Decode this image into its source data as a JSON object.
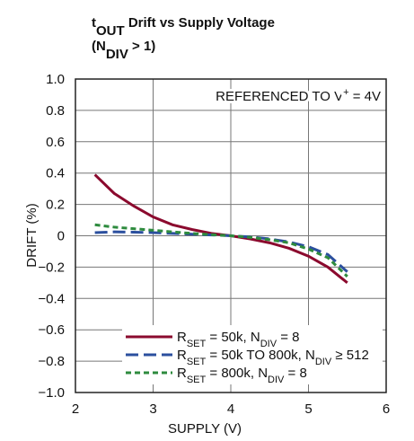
{
  "chart_data": {
    "type": "line",
    "title": [
      [
        "t",
        "OUT",
        " Drift vs Supply Voltage"
      ],
      [
        "(N",
        "DIV",
        " > 1)"
      ]
    ],
    "annotation": [
      "REFERENCED TO V",
      "+",
      " = 4V"
    ],
    "xlabel": "SUPPLY (V)",
    "ylabel": "DRIFT (%)",
    "x": [
      2.25,
      2.5,
      2.75,
      3,
      3.25,
      3.5,
      3.75,
      4,
      4.25,
      4.5,
      4.75,
      5,
      5.25,
      5.5
    ],
    "series": [
      {
        "name": [
          "R",
          "SET",
          " = 50k, N",
          "DIV",
          " = 8"
        ],
        "color": "#8b0a2e",
        "dash": "none",
        "values": [
          0.39,
          0.27,
          0.19,
          0.12,
          0.07,
          0.04,
          0.015,
          0,
          -0.02,
          -0.045,
          -0.08,
          -0.13,
          -0.2,
          -0.3
        ]
      },
      {
        "name": [
          "R",
          "SET",
          " = 50k TO 800k, N",
          "DIV",
          " ≥ 512"
        ],
        "color": "#2b4f9e",
        "dash": "14 6",
        "values": [
          0.02,
          0.025,
          0.023,
          0.02,
          0.015,
          0.01,
          0.005,
          0,
          -0.007,
          -0.02,
          -0.04,
          -0.07,
          -0.12,
          -0.23
        ]
      },
      {
        "name": [
          "R",
          "SET",
          " = 800k, N",
          "DIV",
          " = 8"
        ],
        "color": "#2e8b3e",
        "dash": "6 4",
        "values": [
          0.07,
          0.055,
          0.045,
          0.035,
          0.025,
          0.015,
          0.007,
          0,
          -0.01,
          -0.025,
          -0.045,
          -0.085,
          -0.14,
          -0.26
        ]
      }
    ],
    "xlim": [
      2,
      6
    ],
    "xticks": [
      2,
      3,
      4,
      5,
      6
    ],
    "ylim": [
      -1,
      1
    ],
    "yticks": [
      {
        "value": -1,
        "label": "−1.0"
      },
      {
        "value": -0.8,
        "label": "−0.8"
      },
      {
        "value": -0.6,
        "label": "−0.6"
      },
      {
        "value": -0.4,
        "label": "−0.4"
      },
      {
        "value": -0.2,
        "label": "−0.2"
      },
      0,
      {
        "value": 0.2,
        "label": "0.2"
      },
      {
        "value": 0.4,
        "label": "0.4"
      },
      {
        "value": 0.6,
        "label": "0.6"
      },
      {
        "value": 0.8,
        "label": "0.8"
      },
      {
        "value": 1,
        "label": "1.0"
      }
    ],
    "grid": true
  }
}
